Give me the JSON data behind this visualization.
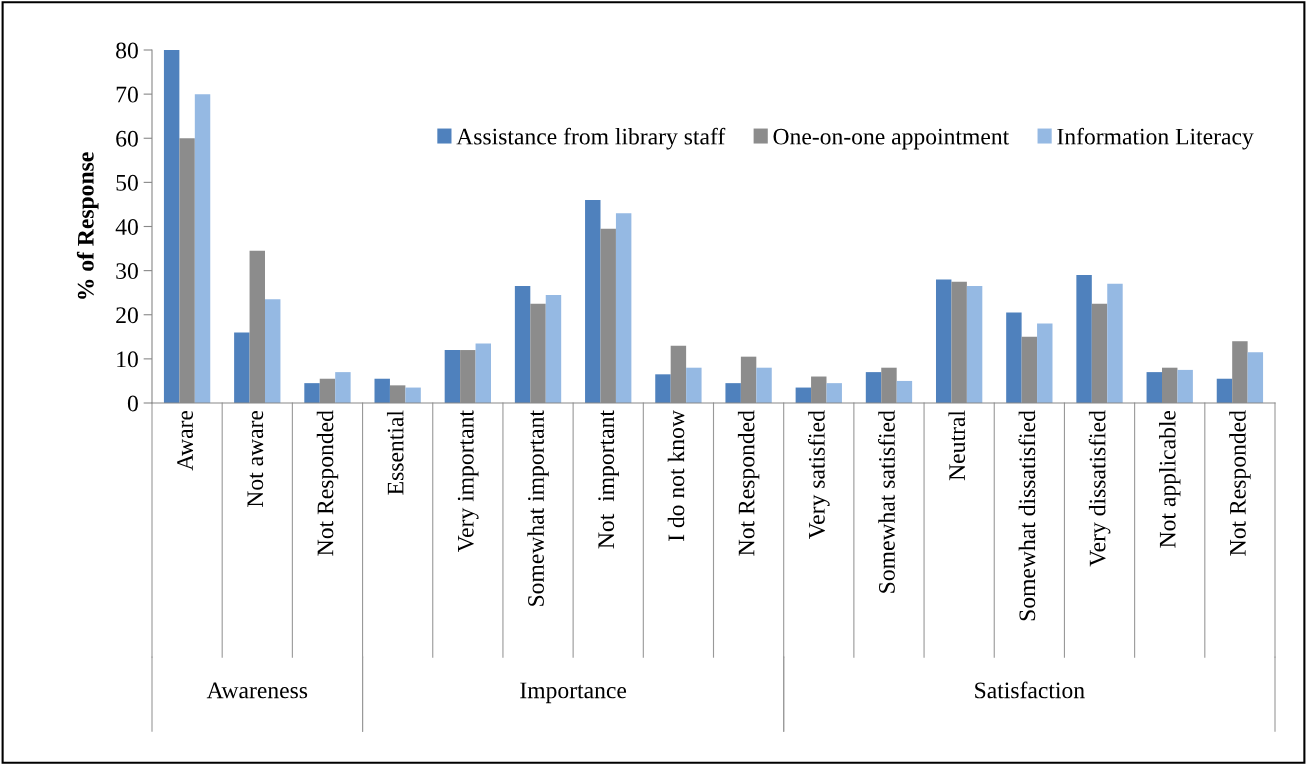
{
  "chart_data": {
    "type": "bar",
    "ylabel": "% of Response",
    "categories": [
      "Aware",
      "Not aware",
      "Not Responded",
      "Essential",
      "Very important",
      "Somewhat important",
      "Not  important",
      "I do not know",
      "Not Responded",
      "Very satisfied",
      "Somewhat satisfied",
      "Neutral",
      "Somewhat dissatisfied",
      "Very dissatisfied",
      "Not applicable",
      "Not Responded"
    ],
    "series": [
      {
        "name": "Assistance from library staff",
        "color": "#4f81bd",
        "values": [
          80,
          16,
          4.5,
          5.5,
          12,
          26.5,
          46,
          6.5,
          4.5,
          3.5,
          7,
          28,
          20.5,
          29,
          7,
          5.5
        ]
      },
      {
        "name": "One-on-one appointment",
        "color": "#8c8c8c",
        "values": [
          60,
          34.5,
          5.5,
          4,
          12,
          22.5,
          39.5,
          13,
          10.5,
          6,
          8,
          27.5,
          15,
          22.5,
          8,
          14
        ]
      },
      {
        "name": "Information Literacy",
        "color": "#95b9e3",
        "values": [
          70,
          23.5,
          7,
          3.5,
          13.5,
          24.5,
          43,
          8,
          8,
          4.5,
          5,
          26.5,
          18,
          27,
          7.5,
          11.5
        ]
      }
    ],
    "annotations": [
      "Awareness",
      "Importance",
      "Satisfaction"
    ],
    "ylim": [
      0,
      80
    ],
    "yticks": [
      0,
      10,
      20,
      30,
      40,
      50,
      60,
      70,
      80
    ],
    "grid": false,
    "legend": "top right"
  }
}
